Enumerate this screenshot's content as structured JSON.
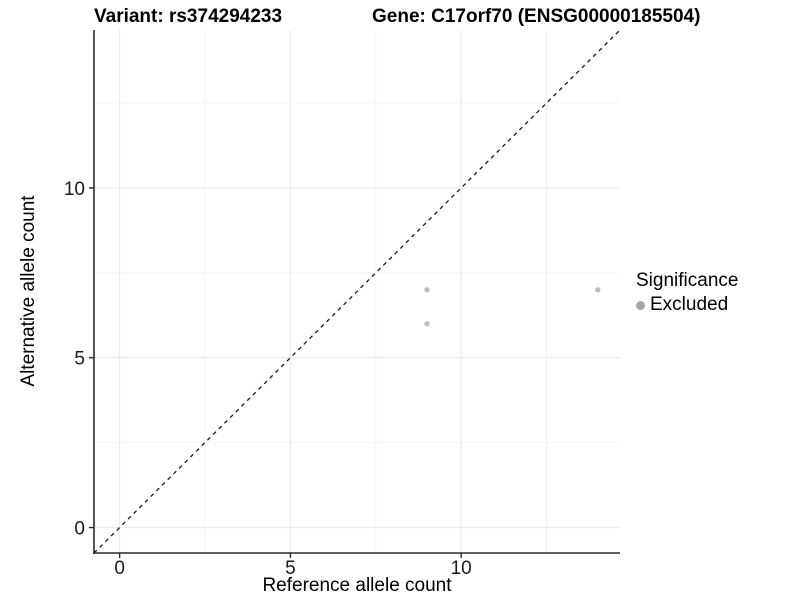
{
  "chart_data": {
    "type": "scatter",
    "titles": {
      "left": "Variant: rs374294233",
      "right": "Gene: C17orf70 (ENSG00000185504)"
    },
    "xlabel": "Reference allele count",
    "ylabel": "Alternative allele count",
    "xlim": [
      -0.75,
      14.65
    ],
    "ylim": [
      -0.75,
      14.65
    ],
    "xticks": [
      0,
      5,
      10
    ],
    "yticks": [
      0,
      5,
      10
    ],
    "minor_ticks_x": [
      2.5,
      7.5,
      12.5
    ],
    "minor_ticks_y": [
      2.5,
      7.5,
      12.5
    ],
    "grid": true,
    "identity_line": {
      "style": "dashed",
      "slope": 1,
      "intercept": 0,
      "color": "#1a1a1a"
    },
    "series": [
      {
        "name": "Excluded",
        "color": "#bdbdbd",
        "points": [
          [
            9,
            7
          ],
          [
            9,
            6
          ],
          [
            14,
            7
          ]
        ]
      }
    ],
    "legend": {
      "title": "Significance",
      "position": "right",
      "items": [
        {
          "label": "Excluded",
          "color": "#a6a6a6"
        }
      ]
    },
    "colors": {
      "background": "#ffffff",
      "grid_major": "#ececec",
      "grid_minor": "#f4f4f4",
      "axis": "#2a2a2a",
      "tick_text": "#1a1a1a"
    }
  }
}
